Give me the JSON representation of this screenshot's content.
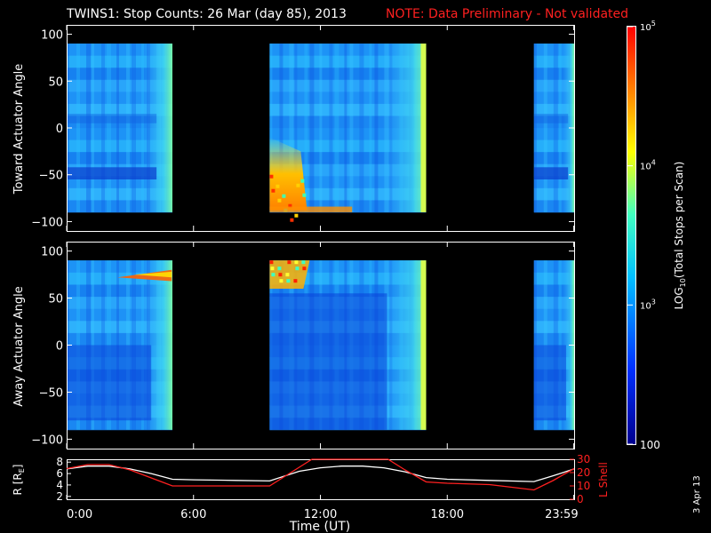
{
  "header": {
    "title": "TWINS1: Stop Counts: 26 Mar (day  85), 2013",
    "note": "NOTE: Data Preliminary - Not validated"
  },
  "chart_data": [
    {
      "type": "heatmap",
      "panel": "toward",
      "ylabel": "Toward Actuator Angle",
      "ylim": [
        -110,
        110
      ],
      "yticks": [
        "100",
        "50",
        "0",
        "−50",
        "−100"
      ],
      "ytick_values": [
        100,
        50,
        0,
        -50,
        -100
      ],
      "data_blocks_hours": [
        [
          0.0,
          5.0
        ],
        [
          9.6,
          17.0
        ],
        [
          22.1,
          24.0
        ]
      ],
      "angle_range": [
        -90,
        90
      ]
    },
    {
      "type": "heatmap",
      "panel": "away",
      "ylabel": "Away Actuator Angle",
      "ylim": [
        -110,
        110
      ],
      "yticks": [
        "100",
        "50",
        "0",
        "−50",
        "−100"
      ],
      "ytick_values": [
        100,
        50,
        0,
        -50,
        -100
      ],
      "data_blocks_hours": [
        [
          0.0,
          5.0
        ],
        [
          9.6,
          17.0
        ],
        [
          22.1,
          24.0
        ]
      ],
      "angle_range": [
        -90,
        90
      ]
    },
    {
      "type": "line",
      "panel": "orbit",
      "ylabel_left": "R [R",
      "ylabel_left_sub": "E",
      "ylabel_left_end": "]",
      "ylabel_right": "L Shell",
      "left_ylim": [
        1.5,
        8.5
      ],
      "left_yticks": [
        "8",
        "6",
        "4",
        "2"
      ],
      "left_tick_values": [
        8,
        6,
        4,
        2
      ],
      "right_ylim": [
        0,
        30
      ],
      "right_yticks": [
        "30",
        "20",
        "10",
        "0"
      ],
      "right_tick_values": [
        30,
        20,
        10,
        0
      ],
      "series": [
        {
          "name": "R",
          "color": "#ffffff",
          "x": [
            0,
            1,
            2,
            3,
            4,
            5,
            6,
            8,
            9.6,
            11,
            12,
            13,
            14,
            15,
            16,
            17,
            18,
            20,
            22.1,
            23,
            24
          ],
          "values": [
            6.8,
            7.3,
            7.3,
            6.8,
            6.0,
            5.0,
            4.9,
            4.8,
            4.7,
            6.4,
            7.0,
            7.3,
            7.3,
            7.0,
            6.3,
            5.3,
            5.0,
            4.8,
            4.6,
            5.6,
            6.8
          ]
        },
        {
          "name": "L Shell",
          "color": "#ff2020",
          "x": [
            0,
            1,
            2,
            3,
            4,
            5,
            6,
            8,
            9.6,
            11,
            11.6,
            15.2,
            16,
            17,
            18,
            20,
            22.1,
            23,
            24
          ],
          "values": [
            23,
            26,
            26,
            22,
            16,
            10,
            10,
            10,
            10,
            24,
            30,
            30,
            22,
            13,
            12,
            11,
            7,
            14,
            23
          ]
        }
      ]
    }
  ],
  "xaxis": {
    "ticks": [
      "0:00",
      "6:00",
      "12:00",
      "18:00",
      "23:59"
    ],
    "tick_hours": [
      0,
      6,
      12,
      18,
      23.983
    ],
    "label": "Time (UT)"
  },
  "colorbar": {
    "label": "LOG10(Total Stops per Scan)",
    "label_main": "LOG",
    "label_sub": "10",
    "label_rest": "(Total Stops per Scan)",
    "ticks": [
      {
        "base": "10",
        "exp": "5",
        "value": 100000
      },
      {
        "base": "10",
        "exp": "4",
        "value": 10000
      },
      {
        "base": "10",
        "exp": "3",
        "value": 1000
      },
      {
        "base": "100",
        "exp": "",
        "value": 100
      }
    ],
    "range": [
      100,
      100000
    ]
  },
  "footer": {
    "date_stamp": "3 Apr 13"
  }
}
